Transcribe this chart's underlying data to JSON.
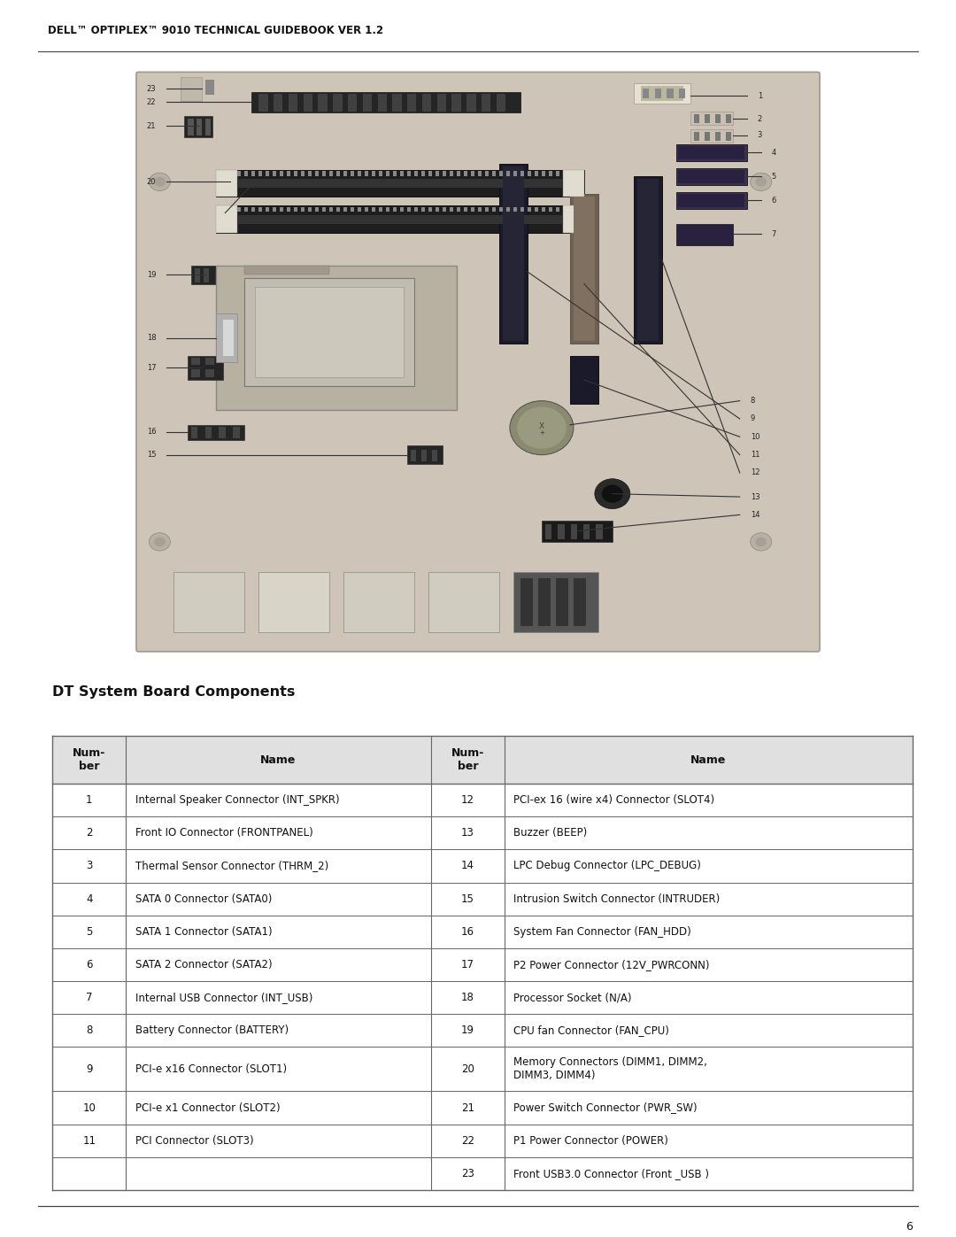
{
  "header": "DELL™ OPTIPLEX™ 9010 TECHNICAL GUIDEBOOK VER 1.2",
  "section_title": "DT System Board Components",
  "page_number": "6",
  "table_header_num": "Num-\nber",
  "table_header_name": "Name",
  "rows": [
    [
      "1",
      "Internal Speaker Connector (INT_SPKR)",
      "12",
      "PCI-ex 16 (wire x4) Connector (SLOT4)"
    ],
    [
      "2",
      "Front IO Connector (FRONTPANEL)",
      "13",
      "Buzzer (BEEP)"
    ],
    [
      "3",
      "Thermal Sensor Connector (THRM_2)",
      "14",
      "LPC Debug Connector (LPC_DEBUG)"
    ],
    [
      "4",
      "SATA 0 Connector (SATA0)",
      "15",
      "Intrusion Switch Connector (INTRUDER)"
    ],
    [
      "5",
      "SATA 1 Connector (SATA1)",
      "16",
      "System Fan Connector (FAN_HDD)"
    ],
    [
      "6",
      "SATA 2 Connector (SATA2)",
      "17",
      "P2 Power Connector (12V_PWRCONN)"
    ],
    [
      "7",
      "Internal USB Connector (INT_USB)",
      "18",
      "Processor Socket (N/A)"
    ],
    [
      "8",
      "Battery Connector (BATTERY)",
      "19",
      "CPU fan Connector (FAN_CPU)"
    ],
    [
      "9",
      "PCI-e x16 Connector (SLOT1)",
      "20",
      "Memory Connectors (DIMM1, DIMM2,\nDIMM3, DIMM4)"
    ],
    [
      "10",
      "PCI-e x1 Connector (SLOT2)",
      "21",
      "Power Switch Connector (PWR_SW)"
    ],
    [
      "11",
      "PCI Connector (SLOT3)",
      "22",
      "P1 Power Connector (POWER)"
    ],
    [
      "",
      "",
      "23",
      "Front USB3.0 Connector (Front _USB )"
    ]
  ],
  "bg_color": "#ffffff",
  "header_bg": "#e0e0e0",
  "border_color": "#666666",
  "text_color": "#111111",
  "board_color": "#cec5b8",
  "board_edge": "#a09888",
  "slot_dark": "#252525",
  "slot_med": "#555555",
  "sata_color": "#1a1a3a",
  "cpu_bg": "#b8b0a0",
  "cpu_inner": "#d0c8b8",
  "battery_color": "#8a8a70",
  "pcie_color": "#1a1a28",
  "connector_dark": "#1a1a1a",
  "line_color": "#333333",
  "callout_color": "#222222"
}
